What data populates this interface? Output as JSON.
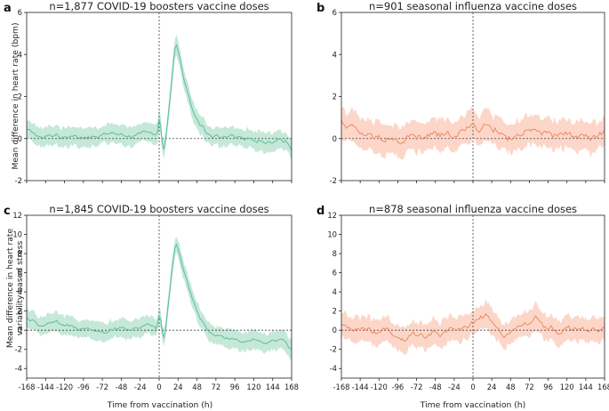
{
  "figure": {
    "xlabel": "Time from vaccination (h)",
    "ylabel_top": "Mean difference in heart rate (bpm)",
    "ylabel_bottom_line1": "Mean difference in heart rate",
    "ylabel_bottom_line2": "variability-based stress"
  },
  "colors": {
    "covid_line": "#5cbf9a",
    "covid_band": "#bfe6d5",
    "flu_line": "#ef8a64",
    "flu_band": "#fcd3c3",
    "axis": "#222222"
  },
  "chart_data": [
    {
      "id": "a",
      "letter": "a",
      "type": "line",
      "title": "n=1,877 COVID-19 boosters vaccine doses",
      "color": "covid",
      "xlim": [
        -168,
        168
      ],
      "ylim": [
        -2,
        6
      ],
      "yticks": [
        "-2",
        "0",
        "2",
        "4",
        "6"
      ],
      "ytick_values": [
        -2,
        0,
        2,
        4,
        6
      ],
      "xticks": [],
      "xtick_values": [],
      "knots": [
        [
          -168,
          0.4
        ],
        [
          -160,
          0.3
        ],
        [
          -150,
          0.0
        ],
        [
          -140,
          0.1
        ],
        [
          -130,
          0.2
        ],
        [
          -120,
          0.0
        ],
        [
          -110,
          0.2
        ],
        [
          -100,
          0.1
        ],
        [
          -90,
          0.1
        ],
        [
          -80,
          0.0
        ],
        [
          -70,
          0.2
        ],
        [
          -60,
          0.3
        ],
        [
          -50,
          0.1
        ],
        [
          -40,
          0.2
        ],
        [
          -30,
          0.1
        ],
        [
          -20,
          0.3
        ],
        [
          -10,
          0.2
        ],
        [
          -3,
          0.1
        ],
        [
          -1,
          0.3
        ],
        [
          0,
          0.8
        ],
        [
          1,
          1.2
        ],
        [
          2,
          0.6
        ],
        [
          4,
          -0.2
        ],
        [
          6,
          -0.4
        ],
        [
          8,
          -0.1
        ],
        [
          12,
          1.2
        ],
        [
          16,
          2.8
        ],
        [
          20,
          4.2
        ],
        [
          22,
          4.4
        ],
        [
          26,
          3.8
        ],
        [
          30,
          3.0
        ],
        [
          36,
          2.2
        ],
        [
          42,
          1.4
        ],
        [
          48,
          0.9
        ],
        [
          54,
          0.6
        ],
        [
          60,
          0.3
        ],
        [
          70,
          0.1
        ],
        [
          80,
          0.0
        ],
        [
          90,
          0.1
        ],
        [
          100,
          0.0
        ],
        [
          110,
          -0.1
        ],
        [
          120,
          0.0
        ],
        [
          130,
          -0.1
        ],
        [
          140,
          -0.2
        ],
        [
          150,
          0.0
        ],
        [
          160,
          -0.1
        ],
        [
          168,
          -0.5
        ]
      ],
      "band_halfwidth": 0.45,
      "noise_amp": 0.18
    },
    {
      "id": "b",
      "letter": "b",
      "type": "line",
      "title": "n=901 seasonal influenza vaccine doses",
      "color": "flu",
      "xlim": [
        -168,
        168
      ],
      "ylim": [
        -2,
        6
      ],
      "yticks": [
        "-2",
        "0",
        "2",
        "4",
        "6"
      ],
      "ytick_values": [
        -2,
        0,
        2,
        4,
        6
      ],
      "xticks": [],
      "xtick_values": [],
      "knots": [
        [
          -168,
          0.8
        ],
        [
          -155,
          0.5
        ],
        [
          -140,
          0.2
        ],
        [
          -125,
          0.0
        ],
        [
          -110,
          0.1
        ],
        [
          -95,
          -0.2
        ],
        [
          -80,
          0.1
        ],
        [
          -65,
          0.0
        ],
        [
          -50,
          0.2
        ],
        [
          -35,
          0.1
        ],
        [
          -20,
          0.3
        ],
        [
          -8,
          0.4
        ],
        [
          0,
          0.6
        ],
        [
          10,
          0.5
        ],
        [
          20,
          0.6
        ],
        [
          30,
          0.4
        ],
        [
          45,
          0.0
        ],
        [
          60,
          0.2
        ],
        [
          75,
          0.3
        ],
        [
          90,
          0.2
        ],
        [
          105,
          0.1
        ],
        [
          120,
          0.2
        ],
        [
          135,
          0.1
        ],
        [
          150,
          0.0
        ],
        [
          168,
          0.2
        ]
      ],
      "band_halfwidth": 0.7,
      "noise_amp": 0.35
    },
    {
      "id": "c",
      "letter": "c",
      "type": "line",
      "title": "n=1,845 COVID-19 boosters vaccine doses",
      "color": "covid",
      "xlim": [
        -168,
        168
      ],
      "ylim": [
        -5,
        12
      ],
      "yticks": [
        "-4",
        "-2",
        "0",
        "2",
        "4",
        "6",
        "8",
        "10",
        "12"
      ],
      "ytick_values": [
        -4,
        -2,
        0,
        2,
        4,
        6,
        8,
        10,
        12
      ],
      "xticks": [
        "-168",
        "-144",
        "-120",
        "-96",
        "-72",
        "-48",
        "-24",
        "0",
        "24",
        "48",
        "72",
        "96",
        "120",
        "144",
        "168"
      ],
      "xtick_values": [
        -168,
        -144,
        -120,
        -96,
        -72,
        -48,
        -24,
        0,
        24,
        48,
        72,
        96,
        120,
        144,
        168
      ],
      "knots": [
        [
          -168,
          1.2
        ],
        [
          -160,
          0.9
        ],
        [
          -150,
          0.4
        ],
        [
          -140,
          0.6
        ],
        [
          -130,
          0.8
        ],
        [
          -120,
          0.3
        ],
        [
          -110,
          0.5
        ],
        [
          -100,
          0.2
        ],
        [
          -90,
          0.4
        ],
        [
          -80,
          0.0
        ],
        [
          -70,
          -0.2
        ],
        [
          -60,
          0.1
        ],
        [
          -50,
          0.3
        ],
        [
          -40,
          0.0
        ],
        [
          -30,
          0.2
        ],
        [
          -20,
          0.4
        ],
        [
          -10,
          0.6
        ],
        [
          -3,
          0.3
        ],
        [
          0,
          1.5
        ],
        [
          1,
          2.2
        ],
        [
          2,
          1.0
        ],
        [
          4,
          -0.5
        ],
        [
          6,
          -0.8
        ],
        [
          8,
          0.0
        ],
        [
          12,
          3.0
        ],
        [
          16,
          6.0
        ],
        [
          20,
          8.7
        ],
        [
          22,
          9.0
        ],
        [
          26,
          8.0
        ],
        [
          30,
          6.5
        ],
        [
          36,
          4.8
        ],
        [
          42,
          3.2
        ],
        [
          48,
          2.0
        ],
        [
          54,
          1.0
        ],
        [
          60,
          0.2
        ],
        [
          66,
          -0.4
        ],
        [
          72,
          -0.6
        ],
        [
          80,
          -0.8
        ],
        [
          90,
          -0.7
        ],
        [
          100,
          -1.0
        ],
        [
          110,
          -1.2
        ],
        [
          120,
          -0.9
        ],
        [
          130,
          -1.1
        ],
        [
          140,
          -1.3
        ],
        [
          150,
          -1.0
        ],
        [
          160,
          -1.2
        ],
        [
          168,
          -2.0
        ]
      ],
      "band_halfwidth": 0.95,
      "noise_amp": 0.35
    },
    {
      "id": "d",
      "letter": "d",
      "type": "line",
      "title": "n=878 seasonal influenza vaccine doses",
      "color": "flu",
      "xlim": [
        -168,
        168
      ],
      "ylim": [
        -5,
        12
      ],
      "yticks": [
        "-4",
        "-2",
        "0",
        "2",
        "4",
        "6",
        "8",
        "10",
        "12"
      ],
      "ytick_values": [
        -4,
        -2,
        0,
        2,
        4,
        6,
        8,
        10,
        12
      ],
      "xticks": [
        "-168",
        "-144",
        "-120",
        "-96",
        "-72",
        "-48",
        "-24",
        "0",
        "24",
        "48",
        "72",
        "96",
        "120",
        "144",
        "168"
      ],
      "xtick_values": [
        -168,
        -144,
        -120,
        -96,
        -72,
        -48,
        -24,
        0,
        24,
        48,
        72,
        96,
        120,
        144,
        168
      ],
      "knots": [
        [
          -168,
          0.3
        ],
        [
          -155,
          0.1
        ],
        [
          -140,
          0.2
        ],
        [
          -125,
          -0.3
        ],
        [
          -110,
          0.0
        ],
        [
          -100,
          -0.8
        ],
        [
          -90,
          -1.2
        ],
        [
          -80,
          -0.6
        ],
        [
          -70,
          -0.4
        ],
        [
          -60,
          -0.9
        ],
        [
          -50,
          -0.2
        ],
        [
          -40,
          -0.6
        ],
        [
          -30,
          0.0
        ],
        [
          -20,
          0.3
        ],
        [
          -10,
          0.2
        ],
        [
          0,
          0.8
        ],
        [
          8,
          1.2
        ],
        [
          16,
          1.5
        ],
        [
          24,
          0.6
        ],
        [
          32,
          0.0
        ],
        [
          40,
          -0.5
        ],
        [
          50,
          0.0
        ],
        [
          60,
          0.4
        ],
        [
          72,
          0.9
        ],
        [
          80,
          1.2
        ],
        [
          90,
          0.4
        ],
        [
          100,
          0.3
        ],
        [
          110,
          -0.4
        ],
        [
          120,
          0.2
        ],
        [
          130,
          0.0
        ],
        [
          140,
          0.1
        ],
        [
          150,
          -0.2
        ],
        [
          168,
          0.0
        ]
      ],
      "band_halfwidth": 1.3,
      "noise_amp": 0.55
    }
  ]
}
